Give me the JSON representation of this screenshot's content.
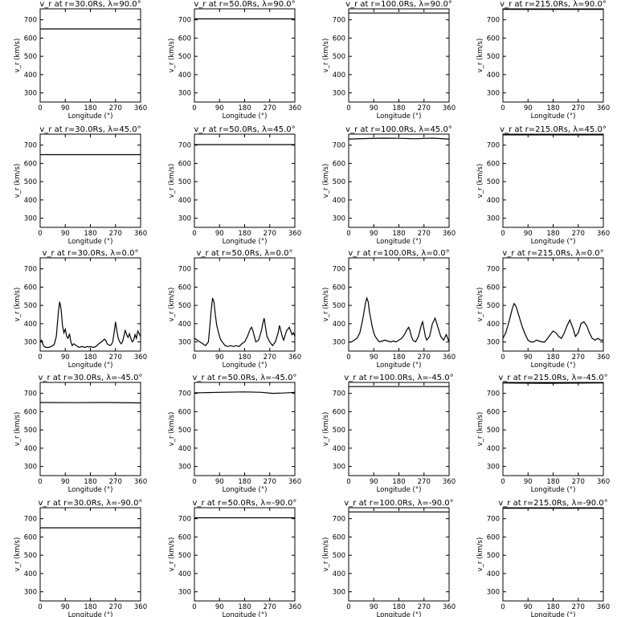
{
  "chart_data": [
    {
      "type": "line",
      "title": "v_r at r=30.0Rs,  λ=90.0°",
      "xlabel": "Longitude (°)",
      "ylabel": "v_r (km/s)",
      "xlim": [
        0,
        360
      ],
      "ylim": [
        250,
        760
      ],
      "x_ticks": [
        0,
        90,
        180,
        270,
        360
      ],
      "y_ticks": [
        300,
        400,
        500,
        600,
        700
      ],
      "x": [
        0,
        360
      ],
      "y": [
        650,
        650
      ]
    },
    {
      "type": "line",
      "title": "v_r at r=50.0Rs,  λ=90.0°",
      "xlabel": "Longitude (°)",
      "ylabel": "v_r (km/s)",
      "xlim": [
        0,
        360
      ],
      "ylim": [
        250,
        760
      ],
      "x_ticks": [
        0,
        90,
        180,
        270,
        360
      ],
      "y_ticks": [
        300,
        400,
        500,
        600,
        700
      ],
      "x": [
        0,
        360
      ],
      "y": [
        705,
        705
      ]
    },
    {
      "type": "line",
      "title": "v_r at r=100.0Rs,  λ=90.0°",
      "xlabel": "Longitude (°)",
      "ylabel": "v_r (km/s)",
      "xlim": [
        0,
        360
      ],
      "ylim": [
        250,
        760
      ],
      "x_ticks": [
        0,
        90,
        180,
        270,
        360
      ],
      "y_ticks": [
        300,
        400,
        500,
        600,
        700
      ],
      "x": [
        0,
        360
      ],
      "y": [
        737,
        737
      ]
    },
    {
      "type": "line",
      "title": "v_r at r=215.0Rs,  λ=90.0°",
      "xlabel": "Longitude (°)",
      "ylabel": "v_r (km/s)",
      "xlim": [
        0,
        360
      ],
      "ylim": [
        250,
        760
      ],
      "x_ticks": [
        0,
        90,
        180,
        270,
        360
      ],
      "y_ticks": [
        300,
        400,
        500,
        600,
        700
      ],
      "x": [
        0,
        360
      ],
      "y": [
        757,
        757
      ]
    },
    {
      "type": "line",
      "title": "v_r at r=30.0Rs,  λ=45.0°",
      "xlabel": "Longitude (°)",
      "ylabel": "v_r (km/s)",
      "xlim": [
        0,
        360
      ],
      "ylim": [
        250,
        760
      ],
      "x_ticks": [
        0,
        90,
        180,
        270,
        360
      ],
      "y_ticks": [
        300,
        400,
        500,
        600,
        700
      ],
      "x": [
        0,
        360
      ],
      "y": [
        648,
        648
      ]
    },
    {
      "type": "line",
      "title": "v_r at r=50.0Rs,  λ=45.0°",
      "xlabel": "Longitude (°)",
      "ylabel": "v_r (km/s)",
      "xlim": [
        0,
        360
      ],
      "ylim": [
        250,
        760
      ],
      "x_ticks": [
        0,
        90,
        180,
        270,
        360
      ],
      "y_ticks": [
        300,
        400,
        500,
        600,
        700
      ],
      "x": [
        0,
        360
      ],
      "y": [
        703,
        703
      ]
    },
    {
      "type": "line",
      "title": "v_r at r=100.0Rs,  λ=45.0°",
      "xlabel": "Longitude (°)",
      "ylabel": "v_r (km/s)",
      "xlim": [
        0,
        360
      ],
      "ylim": [
        250,
        760
      ],
      "x_ticks": [
        0,
        90,
        180,
        270,
        360
      ],
      "y_ticks": [
        300,
        400,
        500,
        600,
        700
      ],
      "x": [
        0,
        60,
        120,
        180,
        240,
        300,
        360
      ],
      "y": [
        733,
        736,
        738,
        737,
        735,
        738,
        733
      ]
    },
    {
      "type": "line",
      "title": "v_r at r=215.0Rs,  λ=45.0°",
      "xlabel": "Longitude (°)",
      "ylabel": "v_r (km/s)",
      "xlim": [
        0,
        360
      ],
      "ylim": [
        250,
        760
      ],
      "x_ticks": [
        0,
        90,
        180,
        270,
        360
      ],
      "y_ticks": [
        300,
        400,
        500,
        600,
        700
      ],
      "x": [
        0,
        360
      ],
      "y": [
        756,
        756
      ]
    },
    {
      "type": "line",
      "title": "v_r at r=30.0Rs,  λ=0.0°",
      "xlabel": "Longitude (°)",
      "ylabel": "v_r (km/s)",
      "xlim": [
        0,
        360
      ],
      "ylim": [
        250,
        760
      ],
      "x_ticks": [
        0,
        90,
        180,
        270,
        360
      ],
      "y_ticks": [
        300,
        400,
        500,
        600,
        700
      ],
      "x": [
        0,
        5,
        10,
        15,
        20,
        30,
        40,
        50,
        58,
        65,
        70,
        75,
        80,
        85,
        90,
        95,
        100,
        105,
        110,
        115,
        120,
        130,
        140,
        150,
        160,
        170,
        175,
        180,
        190,
        200,
        210,
        220,
        230,
        235,
        240,
        245,
        250,
        255,
        260,
        265,
        270,
        275,
        280,
        285,
        290,
        295,
        300,
        305,
        310,
        315,
        320,
        325,
        330,
        335,
        340,
        345,
        350,
        355,
        360
      ],
      "y": [
        300,
        310,
        285,
        275,
        270,
        270,
        275,
        285,
        330,
        460,
        520,
        480,
        390,
        350,
        370,
        330,
        320,
        345,
        300,
        280,
        290,
        280,
        270,
        275,
        270,
        275,
        272,
        275,
        270,
        275,
        290,
        300,
        315,
        310,
        290,
        285,
        280,
        285,
        300,
        350,
        410,
        360,
        320,
        300,
        290,
        300,
        330,
        365,
        340,
        325,
        345,
        320,
        300,
        310,
        340,
        320,
        360,
        345,
        330
      ]
    },
    {
      "type": "line",
      "title": "v_r at r=50.0Rs,  λ=0.0°",
      "xlabel": "Longitude (°)",
      "ylabel": "v_r (km/s)",
      "xlim": [
        0,
        360
      ],
      "ylim": [
        250,
        760
      ],
      "x_ticks": [
        0,
        90,
        180,
        270,
        360
      ],
      "y_ticks": [
        300,
        400,
        500,
        600,
        700
      ],
      "x": [
        0,
        10,
        20,
        30,
        40,
        50,
        55,
        60,
        65,
        70,
        75,
        80,
        85,
        90,
        95,
        100,
        110,
        120,
        130,
        140,
        150,
        160,
        170,
        180,
        190,
        200,
        205,
        210,
        215,
        220,
        230,
        240,
        245,
        250,
        255,
        260,
        270,
        280,
        290,
        300,
        305,
        310,
        315,
        320,
        330,
        340,
        350,
        355,
        360
      ],
      "y": [
        320,
        310,
        300,
        290,
        280,
        300,
        380,
        470,
        540,
        520,
        450,
        390,
        360,
        330,
        310,
        300,
        280,
        275,
        280,
        275,
        280,
        275,
        290,
        300,
        330,
        370,
        380,
        360,
        330,
        300,
        310,
        360,
        400,
        430,
        380,
        330,
        300,
        280,
        300,
        350,
        390,
        360,
        330,
        310,
        360,
        380,
        340,
        350,
        330
      ]
    },
    {
      "type": "line",
      "title": "v_r at r=100.0Rs,  λ=0.0°",
      "xlabel": "Longitude (°)",
      "ylabel": "v_r (km/s)",
      "xlim": [
        0,
        360
      ],
      "ylim": [
        250,
        760
      ],
      "x_ticks": [
        0,
        90,
        180,
        270,
        360
      ],
      "y_ticks": [
        300,
        400,
        500,
        600,
        700
      ],
      "x": [
        0,
        10,
        20,
        30,
        40,
        50,
        60,
        65,
        70,
        75,
        80,
        85,
        90,
        95,
        100,
        110,
        120,
        130,
        140,
        150,
        160,
        170,
        180,
        190,
        200,
        210,
        215,
        220,
        225,
        230,
        240,
        250,
        260,
        265,
        270,
        275,
        280,
        290,
        300,
        310,
        320,
        330,
        340,
        350,
        360
      ],
      "y": [
        300,
        300,
        310,
        320,
        350,
        420,
        510,
        540,
        520,
        460,
        420,
        380,
        350,
        330,
        320,
        300,
        305,
        310,
        305,
        300,
        305,
        300,
        310,
        320,
        340,
        370,
        380,
        360,
        330,
        310,
        300,
        330,
        390,
        410,
        370,
        330,
        310,
        330,
        400,
        430,
        380,
        330,
        310,
        340,
        300
      ]
    },
    {
      "type": "line",
      "title": "v_r at r=215.0Rs,  λ=0.0°",
      "xlabel": "Longitude (°)",
      "ylabel": "v_r (km/s)",
      "xlim": [
        0,
        360
      ],
      "ylim": [
        250,
        760
      ],
      "x_ticks": [
        0,
        90,
        180,
        270,
        360
      ],
      "y_ticks": [
        300,
        400,
        500,
        600,
        700
      ],
      "x": [
        0,
        10,
        20,
        30,
        35,
        40,
        45,
        50,
        60,
        70,
        80,
        90,
        100,
        110,
        120,
        130,
        140,
        150,
        160,
        170,
        180,
        190,
        200,
        210,
        220,
        230,
        240,
        250,
        260,
        270,
        280,
        290,
        300,
        310,
        320,
        330,
        340,
        350,
        360
      ],
      "y": [
        320,
        350,
        400,
        460,
        490,
        510,
        500,
        480,
        430,
        380,
        340,
        310,
        300,
        300,
        310,
        305,
        300,
        300,
        320,
        340,
        360,
        350,
        330,
        320,
        350,
        390,
        420,
        380,
        330,
        350,
        400,
        410,
        390,
        350,
        320,
        310,
        320,
        310,
        310
      ]
    },
    {
      "type": "line",
      "title": "v_r at r=30.0Rs,  λ=-45.0°",
      "xlabel": "Longitude (°)",
      "ylabel": "v_r (km/s)",
      "xlim": [
        0,
        360
      ],
      "ylim": [
        250,
        760
      ],
      "x_ticks": [
        0,
        90,
        180,
        270,
        360
      ],
      "y_ticks": [
        300,
        400,
        500,
        600,
        700
      ],
      "x": [
        0,
        120,
        240,
        360
      ],
      "y": [
        650,
        649,
        650,
        648
      ]
    },
    {
      "type": "line",
      "title": "v_r at r=50.0Rs,  λ=-45.0°",
      "xlabel": "Longitude (°)",
      "ylabel": "v_r (km/s)",
      "xlim": [
        0,
        360
      ],
      "ylim": [
        250,
        760
      ],
      "x_ticks": [
        0,
        90,
        180,
        270,
        360
      ],
      "y_ticks": [
        300,
        400,
        500,
        600,
        700
      ],
      "x": [
        0,
        90,
        180,
        240,
        280,
        320,
        360
      ],
      "y": [
        703,
        706,
        708,
        706,
        700,
        702,
        706
      ]
    },
    {
      "type": "line",
      "title": "v_r at r=100.0Rs,  λ=-45.0°",
      "xlabel": "Longitude (°)",
      "ylabel": "v_r (km/s)",
      "xlim": [
        0,
        360
      ],
      "ylim": [
        250,
        760
      ],
      "x_ticks": [
        0,
        90,
        180,
        270,
        360
      ],
      "y_ticks": [
        300,
        400,
        500,
        600,
        700
      ],
      "x": [
        0,
        360
      ],
      "y": [
        737,
        737
      ]
    },
    {
      "type": "line",
      "title": "v_r at r=215.0Rs,  λ=-45.0°",
      "xlabel": "Longitude (°)",
      "ylabel": "v_r (km/s)",
      "xlim": [
        0,
        360
      ],
      "ylim": [
        250,
        760
      ],
      "x_ticks": [
        0,
        90,
        180,
        270,
        360
      ],
      "y_ticks": [
        300,
        400,
        500,
        600,
        700
      ],
      "x": [
        0,
        150,
        360
      ],
      "y": [
        757,
        755,
        757
      ]
    },
    {
      "type": "line",
      "title": "v_r at r=30.0Rs,  λ=-90.0°",
      "xlabel": "Longitude (°)",
      "ylabel": "v_r (km/s)",
      "xlim": [
        0,
        360
      ],
      "ylim": [
        250,
        760
      ],
      "x_ticks": [
        0,
        90,
        180,
        270,
        360
      ],
      "y_ticks": [
        300,
        400,
        500,
        600,
        700
      ],
      "x": [
        0,
        360
      ],
      "y": [
        650,
        650
      ]
    },
    {
      "type": "line",
      "title": "v_r at r=50.0Rs,  λ=-90.0°",
      "xlabel": "Longitude (°)",
      "ylabel": "v_r (km/s)",
      "xlim": [
        0,
        360
      ],
      "ylim": [
        250,
        760
      ],
      "x_ticks": [
        0,
        90,
        180,
        270,
        360
      ],
      "y_ticks": [
        300,
        400,
        500,
        600,
        700
      ],
      "x": [
        0,
        360
      ],
      "y": [
        705,
        705
      ]
    },
    {
      "type": "line",
      "title": "v_r at r=100.0Rs,  λ=-90.0°",
      "xlabel": "Longitude (°)",
      "ylabel": "v_r (km/s)",
      "xlim": [
        0,
        360
      ],
      "ylim": [
        250,
        760
      ],
      "x_ticks": [
        0,
        90,
        180,
        270,
        360
      ],
      "y_ticks": [
        300,
        400,
        500,
        600,
        700
      ],
      "x": [
        0,
        360
      ],
      "y": [
        737,
        737
      ]
    },
    {
      "type": "line",
      "title": "v_r at r=215.0Rs,  λ=-90.0°",
      "xlabel": "Longitude (°)",
      "ylabel": "v_r (km/s)",
      "xlim": [
        0,
        360
      ],
      "ylim": [
        250,
        760
      ],
      "x_ticks": [
        0,
        90,
        180,
        270,
        360
      ],
      "y_ticks": [
        300,
        400,
        500,
        600,
        700
      ],
      "x": [
        0,
        360
      ],
      "y": [
        757,
        757
      ]
    }
  ]
}
